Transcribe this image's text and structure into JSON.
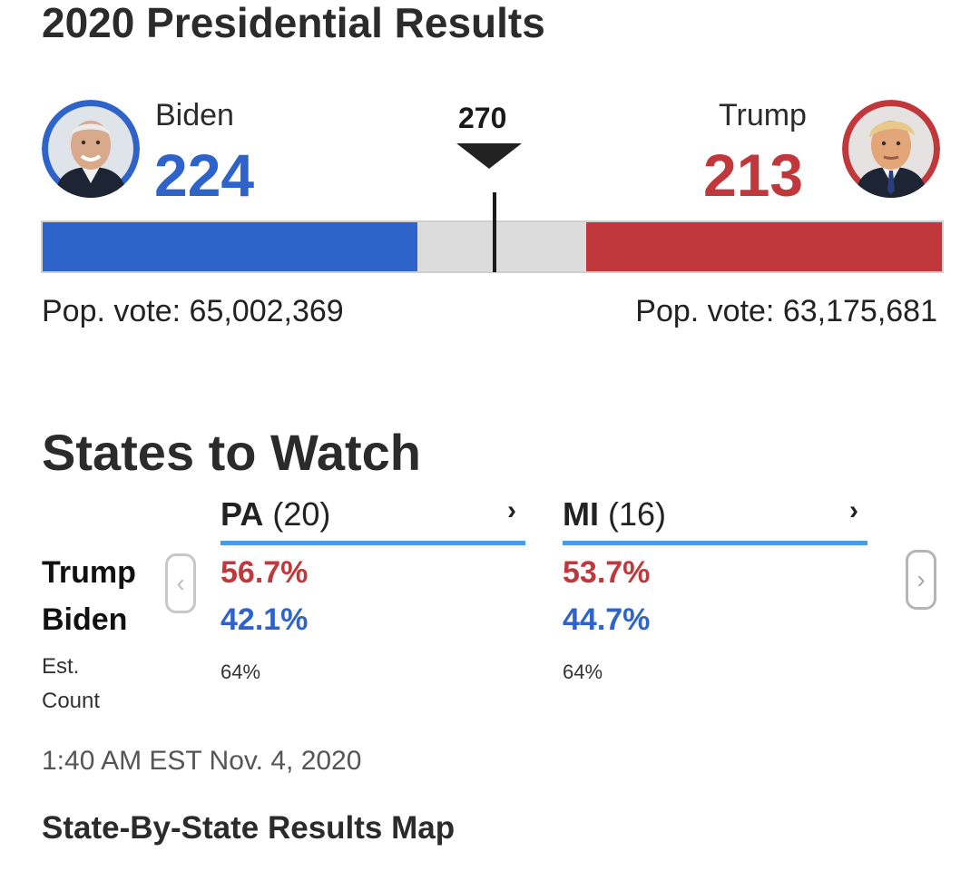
{
  "page_title": "2020 Presidential Results",
  "threshold": {
    "label": "270"
  },
  "colors": {
    "dem": "#2e63c9",
    "rep": "#c0383b",
    "neutral": "#dcdcdc",
    "accent_rule": "#4a9ae8"
  },
  "candidates": {
    "dem": {
      "name": "Biden",
      "electoral_votes": "224",
      "pop_vote_text": "Pop. vote: 65,002,369",
      "avatar_icon": "biden-portrait-icon"
    },
    "rep": {
      "name": "Trump",
      "electoral_votes": "213",
      "pop_vote_text": "Pop. vote: 63,175,681",
      "avatar_icon": "trump-portrait-icon"
    }
  },
  "electoral_bar": {
    "total": 538,
    "dem": 224,
    "rep": 213,
    "threshold": 270
  },
  "states_to_watch": {
    "title": "States to Watch",
    "row_labels": {
      "trump": "Trump",
      "biden": "Biden",
      "est_line1": "Est.",
      "est_line2": "Count"
    },
    "prev_icon": "chevron-left-icon",
    "next_icon": "chevron-right-icon",
    "states": [
      {
        "abbr": "PA",
        "ev": "(20)",
        "trump_pct": "56.7%",
        "biden_pct": "42.1%",
        "est_count": "64%",
        "arrow": "›"
      },
      {
        "abbr": "MI",
        "ev": "(16)",
        "trump_pct": "53.7%",
        "biden_pct": "44.7%",
        "est_count": "64%",
        "arrow": "›"
      }
    ]
  },
  "timestamp": "1:40 AM EST Nov. 4, 2020",
  "map_link": "State-By-State Results Map"
}
